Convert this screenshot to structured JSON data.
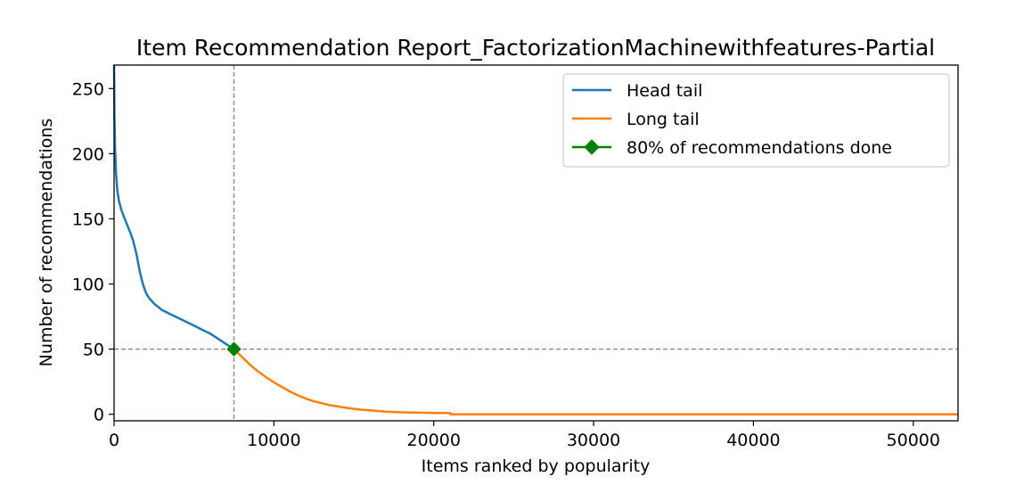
{
  "chart_data": {
    "type": "line",
    "title": "Item Recommendation Report_FactorizationMachinewithfeatures-Partial",
    "xlabel": "Items ranked by popularity",
    "ylabel": "Number of recommendations",
    "xlim": [
      0,
      52800
    ],
    "ylim": [
      -5,
      268
    ],
    "xticks": [
      0,
      10000,
      20000,
      30000,
      40000,
      50000
    ],
    "yticks": [
      0,
      50,
      100,
      150,
      200,
      250
    ],
    "grid": false,
    "legend_position": "top-right",
    "series": [
      {
        "name": "Head tail",
        "color": "#1f77b4",
        "x": [
          0,
          20,
          60,
          120,
          200,
          300,
          450,
          600,
          800,
          1000,
          1200,
          1400,
          1600,
          1800,
          2000,
          2200,
          2500,
          3000,
          3500,
          4000,
          4500,
          5000,
          5500,
          6000,
          6500,
          7000,
          7500
        ],
        "y": [
          268,
          230,
          205,
          185,
          172,
          164,
          157,
          152,
          146,
          140,
          133,
          123,
          110,
          100,
          93,
          89,
          85,
          80,
          77,
          74,
          71,
          68,
          65,
          62,
          58,
          54,
          50
        ]
      },
      {
        "name": "Long tail",
        "color": "#ff7f0e",
        "x": [
          7500,
          8000,
          8500,
          9000,
          9500,
          10000,
          10500,
          11000,
          11500,
          12000,
          12500,
          13000,
          13500,
          14000,
          14500,
          15000,
          15500,
          16000,
          16500,
          17000,
          18000,
          19000,
          20000,
          21000,
          21050,
          30000,
          40000,
          52800
        ],
        "y": [
          50,
          44,
          38,
          33,
          28.5,
          24.5,
          21,
          17.5,
          14.5,
          12,
          10,
          8.5,
          7,
          6,
          5,
          4.2,
          3.5,
          3,
          2.5,
          2,
          1.5,
          1.2,
          1,
          1,
          0,
          0,
          0,
          0
        ]
      }
    ],
    "marker": {
      "name": "80% of recommendations done",
      "x": 7500,
      "y": 50,
      "color": "#008000",
      "shape": "diamond"
    },
    "reference_lines": {
      "x": 7500,
      "y": 50,
      "style": "dashed",
      "color": "#808080"
    }
  }
}
